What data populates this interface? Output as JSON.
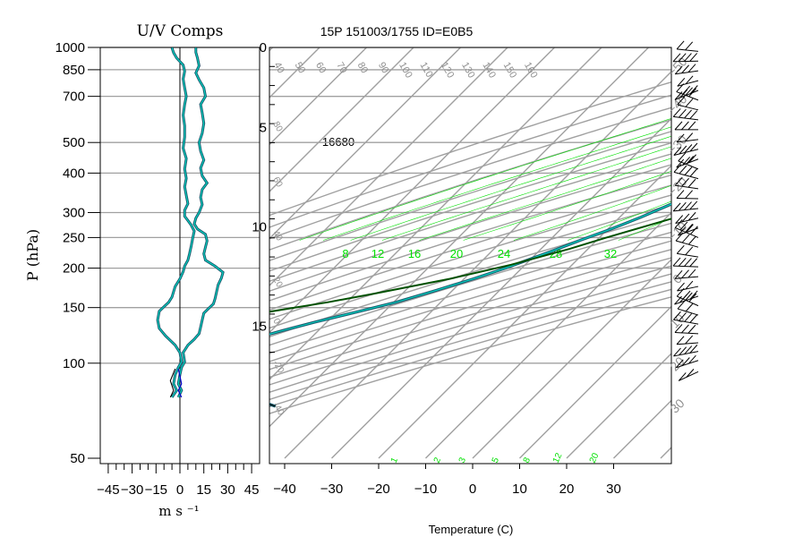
{
  "header": {
    "left_title": "U/V Comps",
    "main_title": "15P 151003/1755 ID=E0B5"
  },
  "labels": {
    "y_axis": "P (hPa)",
    "uv_unit": "m s ⁻¹",
    "temperature_axis": "Temperature (C)",
    "height_annotation": "16680"
  },
  "colors": {
    "grid": "#a0a0a0",
    "moist_adiabat": "#00e000",
    "mixing_ratio": "#00e000",
    "trace_outer": "#1a5a6e",
    "trace_inner": "#00e0c8",
    "parcel": "#005000",
    "u_extra": "#0000cc"
  },
  "chart_data": [
    {
      "type": "line",
      "name": "uv-components",
      "title": "U/V Comps",
      "xlabel": "m s ⁻¹",
      "ylabel": "P (hPa)",
      "y_scale": "log",
      "xlim": [
        -50,
        50
      ],
      "ylim": [
        1000,
        50
      ],
      "x_ticks": [
        -45,
        -30,
        -15,
        0,
        15,
        30,
        45
      ],
      "x_tick_labels": [
        "−45",
        "−30",
        "−15",
        "0",
        "15",
        "30",
        "45"
      ],
      "y_ticks": [
        1000,
        850,
        700,
        500,
        400,
        300,
        250,
        200,
        150,
        100,
        50
      ],
      "series": [
        {
          "component": "U",
          "points": [
            [
              -5,
              78
            ],
            [
              -2,
              82
            ],
            [
              -4,
              86
            ],
            [
              -3,
              92
            ],
            [
              -1,
              97
            ],
            [
              1,
              101
            ],
            [
              0,
              108
            ],
            [
              -3,
              114
            ],
            [
              -6,
              118
            ],
            [
              -9,
              122
            ],
            [
              -13,
              129
            ],
            [
              -14,
              137
            ],
            [
              -13,
              146
            ],
            [
              -10,
              151
            ],
            [
              -7,
              156
            ],
            [
              -5,
              162
            ],
            [
              -3,
              175
            ],
            [
              0,
              185
            ],
            [
              2,
              195
            ],
            [
              3,
              203
            ],
            [
              5,
              212
            ],
            [
              6,
              222
            ],
            [
              7,
              234
            ],
            [
              8,
              248
            ],
            [
              9,
              262
            ],
            [
              7,
              274
            ],
            [
              5,
              283
            ],
            [
              3,
              292
            ],
            [
              3,
              305
            ],
            [
              5,
              320
            ],
            [
              4,
              340
            ],
            [
              3,
              362
            ],
            [
              4,
              385
            ],
            [
              3,
              412
            ],
            [
              4,
              445
            ],
            [
              2,
              480
            ],
            [
              3,
              520
            ],
            [
              3,
              565
            ],
            [
              2,
              610
            ],
            [
              3,
              660
            ],
            [
              4,
              700
            ],
            [
              3,
              745
            ],
            [
              2,
              795
            ],
            [
              3,
              840
            ],
            [
              2,
              880
            ],
            [
              -2,
              925
            ],
            [
              -4,
              962
            ],
            [
              -5,
              998
            ]
          ]
        },
        {
          "component": "V",
          "points": [
            [
              -1,
              78
            ],
            [
              1,
              82
            ],
            [
              -1,
              86
            ],
            [
              0,
              92
            ],
            [
              1,
              97
            ],
            [
              3,
              101
            ],
            [
              2,
              108
            ],
            [
              5,
              114
            ],
            [
              9,
              119
            ],
            [
              12,
              124
            ],
            [
              13,
              130
            ],
            [
              14,
              137
            ],
            [
              15,
              144
            ],
            [
              18,
              149
            ],
            [
              21,
              154
            ],
            [
              22,
              160
            ],
            [
              23,
              168
            ],
            [
              24,
              177
            ],
            [
              26,
              186
            ],
            [
              27,
              194
            ],
            [
              22,
              203
            ],
            [
              16,
              212
            ],
            [
              15,
              222
            ],
            [
              16,
              233
            ],
            [
              17,
              244
            ],
            [
              16,
              256
            ],
            [
              11,
              266
            ],
            [
              9,
              276
            ],
            [
              10,
              288
            ],
            [
              12,
              300
            ],
            [
              14,
              318
            ],
            [
              13,
              335
            ],
            [
              14,
              355
            ],
            [
              17,
              372
            ],
            [
              14,
              392
            ],
            [
              13,
              415
            ],
            [
              15,
              440
            ],
            [
              13,
              470
            ],
            [
              12,
              500
            ],
            [
              14,
              535
            ],
            [
              15,
              575
            ],
            [
              14,
              620
            ],
            [
              13,
              660
            ],
            [
              16,
              700
            ],
            [
              15,
              745
            ],
            [
              12,
              790
            ],
            [
              10,
              830
            ],
            [
              12,
              875
            ],
            [
              11,
              925
            ],
            [
              10,
              965
            ],
            [
              10,
              998
            ]
          ]
        },
        {
          "component": "U upper",
          "points": [
            [
              1,
              78
            ],
            [
              -1,
              82
            ],
            [
              1,
              86
            ],
            [
              0,
              91
            ],
            [
              -1,
              96
            ]
          ]
        }
      ]
    },
    {
      "type": "line",
      "name": "skew-t-log-p",
      "title": "15P 151003/1755 ID=E0B5",
      "xlabel": "Temperature (C)",
      "ylabel": "P (hPa)",
      "y_scale": "log",
      "skew": "45 degree",
      "xlim": [
        -43,
        40
      ],
      "ylim": [
        1000,
        50
      ],
      "x_ticks": [
        -40,
        -30,
        -20,
        -10,
        0,
        10,
        20,
        30
      ],
      "x_tick_labels": [
        "−40",
        "−30",
        "−20",
        "−10",
        "0",
        "10",
        "20",
        "30"
      ],
      "height_axis_ticks": [
        0,
        5,
        10,
        15
      ],
      "isotherm_labels": [
        "−50",
        "−40",
        "−30",
        "−20",
        "−10",
        "0",
        "10",
        "20",
        "30"
      ],
      "potential_temperature_labels": [
        "40",
        "50",
        "60",
        "70",
        "80",
        "90",
        "100",
        "110",
        "120",
        "130",
        "140",
        "150",
        "160"
      ],
      "moist_adiabat_labels": [
        "8",
        "12",
        "16",
        "20",
        "24",
        "28",
        "32"
      ],
      "mixing_ratio_labels": [
        "1",
        "2",
        "3",
        "5",
        "8",
        "12",
        "20"
      ],
      "series": [
        {
          "name": "temperature",
          "points": [
            [
              24,
              1000
            ],
            [
              22,
              970
            ],
            [
              21.5,
              940
            ],
            [
              19.5,
              910
            ],
            [
              19,
              880
            ],
            [
              18.3,
              850
            ],
            [
              17.5,
              820
            ],
            [
              16.5,
              790
            ],
            [
              15.2,
              760
            ],
            [
              14.5,
              730
            ],
            [
              12.8,
              700
            ],
            [
              12.3,
              670
            ],
            [
              11,
              640
            ],
            [
              9.8,
              610
            ],
            [
              8.2,
              580
            ],
            [
              6.3,
              550
            ],
            [
              4.7,
              520
            ],
            [
              2.9,
              490
            ],
            [
              0.6,
              460
            ],
            [
              -1.6,
              430
            ],
            [
              -3.5,
              400
            ],
            [
              -6.5,
              370
            ],
            [
              -9.3,
              340
            ],
            [
              -12.3,
              315
            ],
            [
              -15.5,
              290
            ],
            [
              -19.5,
              265
            ],
            [
              -23.5,
              245
            ],
            [
              -27.5,
              225
            ],
            [
              -33.5,
              200
            ],
            [
              -38,
              185
            ],
            [
              -43.5,
              170
            ],
            [
              -49.5,
              156
            ],
            [
              -56,
              145
            ],
            [
              -62.5,
              135
            ],
            [
              -67.5,
              127
            ],
            [
              -72,
              120
            ],
            [
              -76,
              113
            ],
            [
              -78.5,
              107
            ],
            [
              -80,
              101
            ],
            [
              -80.5,
              96
            ],
            [
              -79,
              92
            ],
            [
              -77,
              88
            ],
            [
              -72.5,
              84
            ],
            [
              -66,
              80
            ],
            [
              -60,
              77
            ],
            [
              -56,
              75
            ],
            [
              -53,
              73
            ]
          ]
        },
        {
          "name": "parcel",
          "points": [
            [
              21,
              1000
            ],
            [
              21,
              960
            ],
            [
              21.3,
              920
            ],
            [
              22,
              880
            ],
            [
              22.6,
              850
            ],
            [
              22.4,
              820
            ],
            [
              22,
              790
            ],
            [
              21.6,
              760
            ],
            [
              21.4,
              730
            ],
            [
              21,
              700
            ],
            [
              20,
              650
            ],
            [
              19,
              600
            ],
            [
              17.5,
              550
            ],
            [
              15.5,
              500
            ],
            [
              12.3,
              450
            ],
            [
              8,
              400
            ],
            [
              2.5,
              350
            ],
            [
              -5.5,
              300
            ],
            [
              -18.5,
              250
            ],
            [
              -24,
              230
            ],
            [
              -33,
              205
            ],
            [
              -43,
              185
            ],
            [
              -56,
              166
            ],
            [
              -64,
              156
            ],
            [
              -75,
              145
            ],
            [
              -86,
              134
            ]
          ]
        }
      ]
    },
    {
      "type": "scatter",
      "name": "wind-barbs",
      "description_free": true,
      "y_scale": "log",
      "levels_hpa": [
        94,
        102,
        109,
        116,
        124,
        133,
        142,
        152,
        163,
        175,
        188,
        202,
        217,
        233,
        250,
        268,
        288,
        309,
        332,
        357,
        384,
        412,
        443,
        476,
        511,
        549,
        590,
        634,
        681,
        731,
        785,
        843,
        905,
        972
      ]
    }
  ]
}
